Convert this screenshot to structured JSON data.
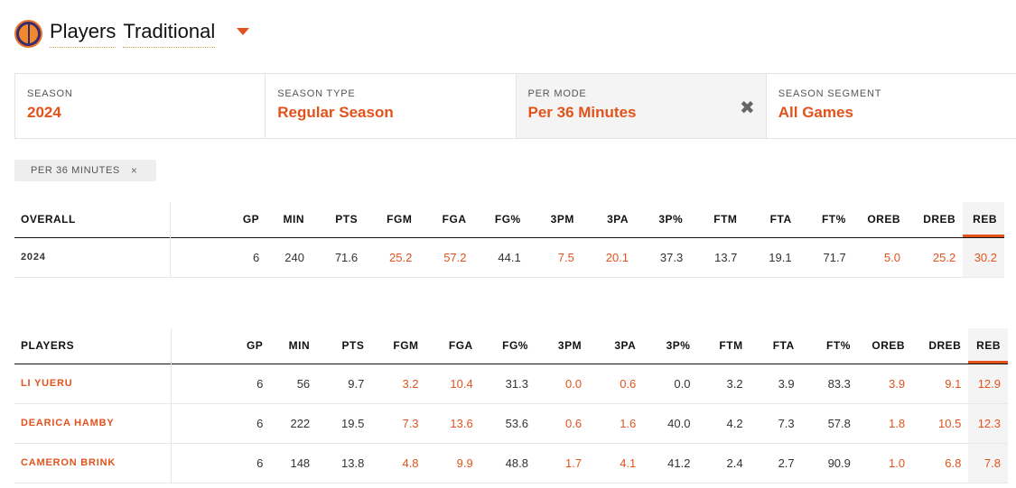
{
  "header": {
    "logo_icon": "team-logo-icon",
    "title_word1": "Players",
    "title_word2": "Traditional"
  },
  "filters": [
    {
      "label": "SEASON",
      "value": "2024",
      "active": false
    },
    {
      "label": "SEASON TYPE",
      "value": "Regular Season",
      "active": false
    },
    {
      "label": "PER MODE",
      "value": "Per 36 Minutes",
      "active": true,
      "clear_icon": "✖"
    },
    {
      "label": "SEASON SEGMENT",
      "value": "All Games",
      "active": false
    }
  ],
  "chip": {
    "label": "PER 36 MINUTES",
    "close": "×"
  },
  "overall_table": {
    "headers": [
      "OVERALL",
      "GP",
      "MIN",
      "PTS",
      "FGM",
      "FGA",
      "FG%",
      "3PM",
      "3PA",
      "3P%",
      "FTM",
      "FTA",
      "FT%",
      "OREB",
      "DREB",
      "REB"
    ],
    "rows": [
      [
        "2024",
        "6",
        "240",
        "71.6",
        "25.2",
        "57.2",
        "44.1",
        "7.5",
        "20.1",
        "37.3",
        "13.7",
        "19.1",
        "71.7",
        "5.0",
        "25.2",
        "30.2"
      ]
    ]
  },
  "players_table": {
    "headers": [
      "PLAYERS",
      "GP",
      "MIN",
      "PTS",
      "FGM",
      "FGA",
      "FG%",
      "3PM",
      "3PA",
      "3P%",
      "FTM",
      "FTA",
      "FT%",
      "OREB",
      "DREB",
      "REB"
    ],
    "rows": [
      [
        "LI YUERU",
        "6",
        "56",
        "9.7",
        "3.2",
        "10.4",
        "31.3",
        "0.0",
        "0.6",
        "0.0",
        "3.2",
        "3.9",
        "83.3",
        "3.9",
        "9.1",
        "12.9"
      ],
      [
        "DEARICA HAMBY",
        "6",
        "222",
        "19.5",
        "7.3",
        "13.6",
        "53.6",
        "0.6",
        "1.6",
        "40.0",
        "4.2",
        "7.3",
        "57.8",
        "1.8",
        "10.5",
        "12.3"
      ],
      [
        "CAMERON BRINK",
        "6",
        "148",
        "13.8",
        "4.8",
        "9.9",
        "48.8",
        "1.7",
        "4.1",
        "41.2",
        "2.4",
        "2.7",
        "90.9",
        "1.0",
        "6.8",
        "7.8"
      ]
    ]
  },
  "colors": {
    "accent": "#e2531c",
    "active_bg": "#f4f4f4"
  }
}
